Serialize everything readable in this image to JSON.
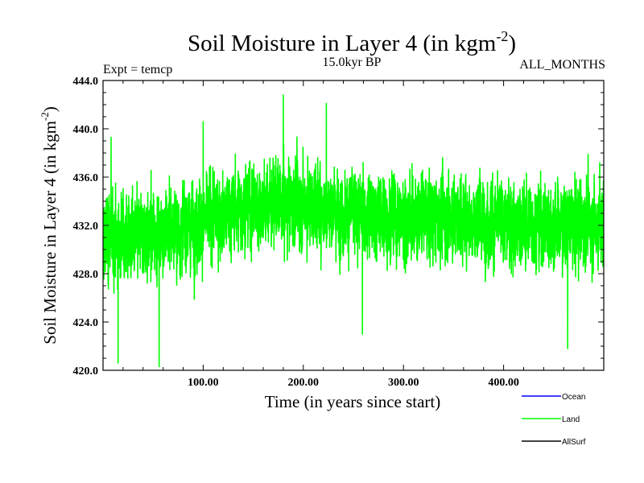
{
  "chart_data": {
    "type": "line",
    "title": "Soil Moisture in Layer 4 (in kgm",
    "title_superscript": "-2",
    "title_suffix": ")",
    "subtitle_left": "Expt = temcp",
    "subtitle_center": "15.0kyr BP",
    "subtitle_right": "ALL_MONTHS",
    "xlabel": "Time (in years since start)",
    "ylabel": "Soil Moisture in Layer 4 (in kgm",
    "ylabel_superscript": "-2",
    "ylabel_suffix": ")",
    "xlim": [
      0,
      500
    ],
    "ylim": [
      420,
      444
    ],
    "x_ticks": [
      {
        "value": 100,
        "label": "100.00"
      },
      {
        "value": 200,
        "label": "200.00"
      },
      {
        "value": 300,
        "label": "300.00"
      },
      {
        "value": 400,
        "label": "400.00"
      }
    ],
    "y_ticks": [
      {
        "value": 420,
        "label": "420.0"
      },
      {
        "value": 424,
        "label": "424.0"
      },
      {
        "value": 428,
        "label": "428.0"
      },
      {
        "value": 432,
        "label": "432.0"
      },
      {
        "value": 436,
        "label": "436.0"
      },
      {
        "value": 440,
        "label": "440.0"
      },
      {
        "value": 444,
        "label": "444.0"
      }
    ],
    "legend": [
      {
        "name": "Ocean",
        "color": "#0000ff"
      },
      {
        "name": "Land",
        "color": "#00ff00"
      },
      {
        "name": "AllSurf",
        "color": "#000000"
      }
    ],
    "series": [
      {
        "name": "Land",
        "color": "#00ff00",
        "points_per_year": 12,
        "mean_profile": {
          "x": [
            0,
            30,
            60,
            100,
            140,
            180,
            220,
            260,
            300,
            340,
            380,
            420,
            460,
            500
          ],
          "y": [
            431.0,
            430.8,
            431.5,
            432.2,
            433.5,
            433.8,
            433.6,
            432.8,
            432.6,
            432.8,
            432.4,
            432.2,
            432.0,
            432.2
          ]
        },
        "amplitude": 3.3,
        "extremes": [
          {
            "x": 180,
            "y": 442.8
          },
          {
            "x": 223,
            "y": 442.1
          },
          {
            "x": 56,
            "y": 420.3
          },
          {
            "x": 15,
            "y": 420.6
          },
          {
            "x": 464,
            "y": 421.8
          },
          {
            "x": 259,
            "y": 423.0
          },
          {
            "x": 100,
            "y": 440.6
          },
          {
            "x": 8,
            "y": 439.3
          },
          {
            "x": 496,
            "y": 437.2
          }
        ]
      },
      {
        "name": "Ocean",
        "color": "#0000ff",
        "values": []
      },
      {
        "name": "AllSurf",
        "color": "#000000",
        "values": []
      }
    ]
  }
}
